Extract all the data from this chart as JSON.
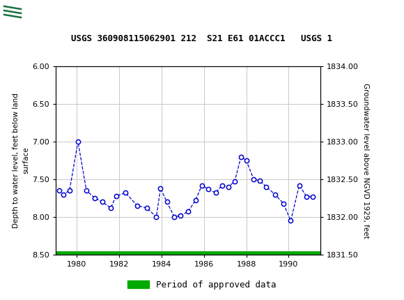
{
  "title": "USGS 360908115062901 212  S21 E61 01ACCC1   USGS 1",
  "ylabel_left": "Depth to water level, feet below land\nsurface",
  "ylabel_right": "Groundwater level above NGVD 1929, feet",
  "ylim_left": [
    8.5,
    6.0
  ],
  "ylim_right": [
    1831.5,
    1834.0
  ],
  "xlim": [
    1979.0,
    1991.5
  ],
  "xticks": [
    1980,
    1982,
    1984,
    1986,
    1988,
    1990
  ],
  "yticks_left": [
    6.0,
    6.5,
    7.0,
    7.5,
    8.0,
    8.5
  ],
  "yticks_right": [
    1831.5,
    1832.0,
    1832.5,
    1833.0,
    1833.5,
    1834.0
  ],
  "data_x": [
    1979.15,
    1979.35,
    1979.65,
    1980.05,
    1980.45,
    1980.85,
    1981.2,
    1981.6,
    1981.85,
    1982.3,
    1982.85,
    1983.3,
    1983.75,
    1983.95,
    1984.25,
    1984.6,
    1984.9,
    1985.25,
    1985.6,
    1985.9,
    1986.2,
    1986.55,
    1986.85,
    1987.15,
    1987.45,
    1987.75,
    1988.0,
    1988.35,
    1988.65,
    1988.95,
    1989.35,
    1989.75,
    1990.1,
    1990.5,
    1990.85,
    1991.15
  ],
  "data_y": [
    7.65,
    7.7,
    7.65,
    7.0,
    7.65,
    7.75,
    7.8,
    7.88,
    7.72,
    7.68,
    7.85,
    7.88,
    8.0,
    7.62,
    7.8,
    8.0,
    7.98,
    7.93,
    7.78,
    7.58,
    7.63,
    7.68,
    7.58,
    7.6,
    7.53,
    7.2,
    7.25,
    7.5,
    7.52,
    7.6,
    7.7,
    7.82,
    8.05,
    7.58,
    7.73,
    7.73
  ],
  "line_color": "#0000cc",
  "marker_face": "#ffffff",
  "legend_label": "Period of approved data",
  "legend_color": "#00aa00",
  "header_color": "#1a7040",
  "grid_color": "#c8c8c8",
  "bg_color": "#ffffff",
  "header_text_color": "#ffffff",
  "title_font": "DejaVu Sans Mono",
  "axis_font_size": 8,
  "title_font_size": 9,
  "legend_font_size": 9
}
